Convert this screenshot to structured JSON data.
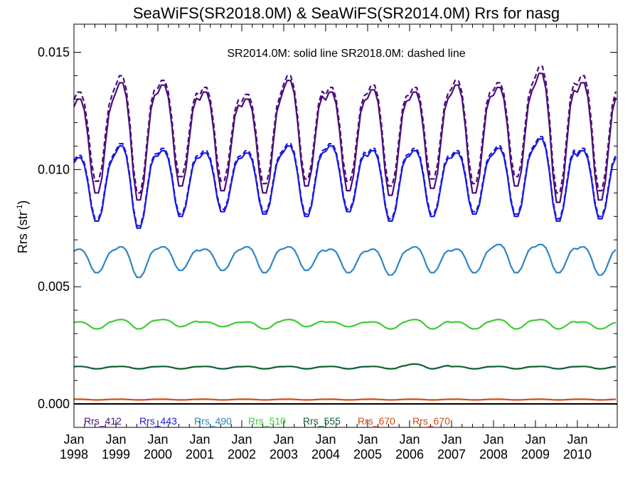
{
  "chart_data": {
    "type": "line",
    "title": "SeaWiFS(SR2018.0M) & SeaWiFS(SR2014.0M)  Rrs for nasg",
    "annotation": "SR2014.0M: solid line   SR2018.0M: dashed line",
    "ylabel": "Rrs (str",
    "ylabel_sup": "-1",
    "ylabel_close": ")",
    "ylim": [
      -0.001,
      0.0162
    ],
    "xlim": [
      1998.0,
      2010.95
    ],
    "yticks": [
      {
        "value": 0.0,
        "label": "0.000"
      },
      {
        "value": 0.005,
        "label": "0.005"
      },
      {
        "value": 0.01,
        "label": "0.010"
      },
      {
        "value": 0.015,
        "label": "0.015"
      }
    ],
    "xticks": [
      {
        "value": 1998,
        "month": "Jan",
        "year": "1998"
      },
      {
        "value": 1999,
        "month": "Jan",
        "year": "1999"
      },
      {
        "value": 2000,
        "month": "Jan",
        "year": "2000"
      },
      {
        "value": 2001,
        "month": "Jan",
        "year": "2001"
      },
      {
        "value": 2002,
        "month": "Jan",
        "year": "2002"
      },
      {
        "value": 2003,
        "month": "Jan",
        "year": "2003"
      },
      {
        "value": 2004,
        "month": "Jan",
        "year": "2004"
      },
      {
        "value": 2005,
        "month": "Jan",
        "year": "2005"
      },
      {
        "value": 2006,
        "month": "Jan",
        "year": "2006"
      },
      {
        "value": 2007,
        "month": "Jan",
        "year": "2007"
      },
      {
        "value": 2008,
        "month": "Jan",
        "year": "2008"
      },
      {
        "value": 2009,
        "month": "Jan",
        "year": "2009"
      },
      {
        "value": 2010,
        "month": "Jan",
        "year": "2010"
      }
    ],
    "grid": false,
    "legend_position": "bottom-left",
    "legend": [
      {
        "label": "Rrs_412",
        "color": "#4b0f7a"
      },
      {
        "label": "Rrs_443",
        "color": "#1a1adc"
      },
      {
        "label": "Rrs_490",
        "color": "#2f86c4"
      },
      {
        "label": "Rrs_510",
        "color": "#3dcc33"
      },
      {
        "label": "Rrs_555",
        "color": "#0f6030"
      },
      {
        "label": "Rrs_670",
        "color": "#d64a14"
      },
      {
        "label": "Rrs_670",
        "color": "#d64a14"
      }
    ],
    "x_description": "monthly, Jan 1998 to Dec 2010",
    "series": [
      {
        "name": "Rrs_412",
        "version": "SR2014.0M",
        "style": "solid",
        "color": "#4b0f7a",
        "winter_peaks": [
          0.013,
          0.0137,
          0.0136,
          0.0133,
          0.013,
          0.0138,
          0.0133,
          0.0134,
          0.0133,
          0.0136,
          0.0135,
          0.0141,
          0.0137,
          0.0134
        ],
        "summer_troughs": [
          0.009,
          0.0087,
          0.0093,
          0.0091,
          0.009,
          0.0093,
          0.0091,
          0.0089,
          0.0092,
          0.009,
          0.0093,
          0.0086,
          0.0087,
          0.0101
        ]
      },
      {
        "name": "Rrs_412",
        "version": "SR2018.0M",
        "style": "dashed",
        "color": "#4b0f7a",
        "winter_peaks": [
          0.0133,
          0.014,
          0.0138,
          0.0135,
          0.0132,
          0.014,
          0.0135,
          0.0136,
          0.0135,
          0.0138,
          0.0137,
          0.0144,
          0.014,
          0.0136
        ],
        "summer_troughs": [
          0.0095,
          0.009,
          0.0097,
          0.0095,
          0.0094,
          0.0096,
          0.0095,
          0.0093,
          0.0096,
          0.0094,
          0.0097,
          0.009,
          0.0091,
          0.0104
        ]
      },
      {
        "name": "Rrs_443",
        "version": "SR2014.0M",
        "style": "solid",
        "color": "#1a1adc",
        "winter_peaks": [
          0.0105,
          0.011,
          0.0108,
          0.0107,
          0.0107,
          0.011,
          0.011,
          0.0108,
          0.0108,
          0.0107,
          0.0109,
          0.0113,
          0.0108,
          0.0108
        ],
        "summer_troughs": [
          0.0078,
          0.0075,
          0.008,
          0.0082,
          0.0081,
          0.008,
          0.0082,
          0.0078,
          0.008,
          0.0081,
          0.008,
          0.0078,
          0.0079,
          0.0085
        ]
      },
      {
        "name": "Rrs_443",
        "version": "SR2018.0M",
        "style": "dashed",
        "color": "#1a1adc",
        "winter_peaks": [
          0.0106,
          0.0111,
          0.0109,
          0.0108,
          0.0108,
          0.0111,
          0.0111,
          0.0109,
          0.0109,
          0.0108,
          0.011,
          0.0114,
          0.0109,
          0.0109
        ],
        "summer_troughs": [
          0.0079,
          0.0076,
          0.0081,
          0.0083,
          0.0082,
          0.0081,
          0.0083,
          0.0079,
          0.0081,
          0.0082,
          0.0081,
          0.0079,
          0.008,
          0.0086
        ]
      },
      {
        "name": "Rrs_490",
        "version": "SR2014.0M",
        "style": "solid",
        "color": "#2f86c4",
        "winter_peaks": [
          0.0066,
          0.0067,
          0.0067,
          0.0066,
          0.0067,
          0.0067,
          0.0066,
          0.0066,
          0.0067,
          0.0066,
          0.0068,
          0.0068,
          0.0067,
          0.0067
        ],
        "summer_troughs": [
          0.0056,
          0.0054,
          0.0057,
          0.0057,
          0.0056,
          0.0057,
          0.0056,
          0.0055,
          0.0056,
          0.0056,
          0.0056,
          0.0056,
          0.0055,
          0.0058
        ]
      },
      {
        "name": "Rrs_510",
        "version": "SR2014.0M",
        "style": "solid",
        "color": "#3dcc33",
        "winter_peaks": [
          0.0035,
          0.0036,
          0.0036,
          0.0035,
          0.0035,
          0.0036,
          0.0035,
          0.0035,
          0.0036,
          0.0035,
          0.0036,
          0.0036,
          0.0035,
          0.0035
        ],
        "summer_troughs": [
          0.0032,
          0.0032,
          0.0033,
          0.0033,
          0.0032,
          0.0033,
          0.0033,
          0.0032,
          0.0032,
          0.0032,
          0.0032,
          0.0032,
          0.0032,
          0.0032
        ]
      },
      {
        "name": "Rrs_555",
        "version": "SR2014.0M",
        "style": "solid",
        "color": "#0f6030",
        "winter_peaks": [
          0.0016,
          0.0016,
          0.0016,
          0.0016,
          0.0016,
          0.0016,
          0.0016,
          0.0016,
          0.0017,
          0.0016,
          0.0016,
          0.0016,
          0.0016,
          0.0016
        ],
        "summer_troughs": [
          0.0015,
          0.0015,
          0.0015,
          0.0015,
          0.0015,
          0.0015,
          0.0015,
          0.0015,
          0.0015,
          0.0015,
          0.0015,
          0.0015,
          0.0015,
          0.0015
        ]
      },
      {
        "name": "Rrs_670",
        "version": "SR2014.0M",
        "style": "solid",
        "color": "#d64a14",
        "winter_peaks": [
          0.0002,
          0.0002,
          0.0002,
          0.0002,
          0.0002,
          0.0002,
          0.0002,
          0.0002,
          0.0002,
          0.0002,
          0.0002,
          0.0002,
          0.0002,
          0.0002
        ],
        "summer_troughs": [
          0.00017,
          0.00017,
          0.00017,
          0.00017,
          0.00017,
          0.00017,
          0.00017,
          0.00017,
          0.00017,
          0.00017,
          0.00017,
          0.00017,
          0.00017,
          0.00017
        ]
      }
    ]
  }
}
